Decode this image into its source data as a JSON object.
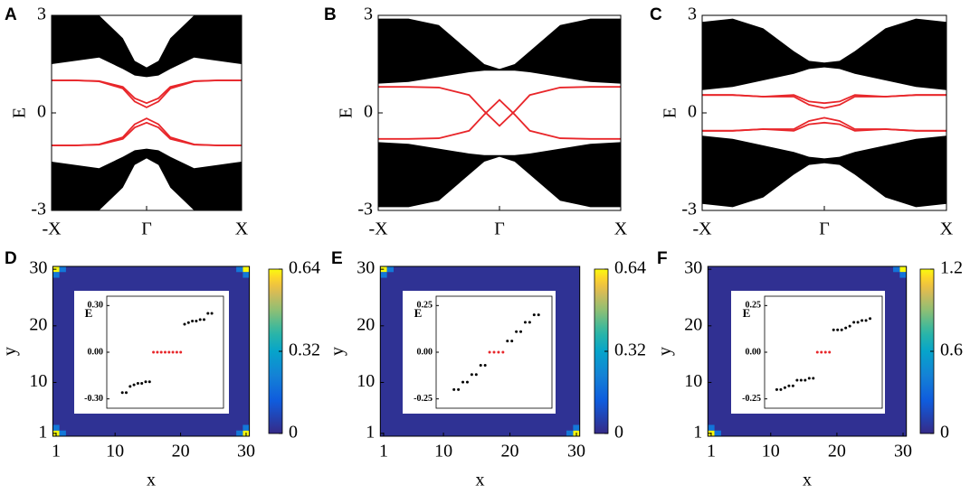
{
  "chart_data": [
    {
      "type": "band",
      "panel_label": "A",
      "ylabel": "E",
      "x": [
        -1,
        -0.75,
        -0.5,
        -0.25,
        -0.125,
        0,
        0.125,
        0.25,
        0.5,
        0.75,
        1
      ],
      "xlim": [
        -1,
        1
      ],
      "ylim": [
        -3,
        3
      ],
      "xticks": [
        {
          "value": -1,
          "label": "-X"
        },
        {
          "value": 0,
          "label": "Γ"
        },
        {
          "value": 1,
          "label": "X"
        }
      ],
      "yticks": [
        -3,
        0,
        3
      ],
      "bands": [
        {
          "color": "#000000",
          "lower": [
            1.5,
            1.6,
            1.7,
            1.35,
            1.15,
            1.1,
            1.15,
            1.35,
            1.7,
            1.6,
            1.5
          ],
          "upper": [
            3,
            3,
            3,
            2.3,
            1.6,
            1.4,
            1.6,
            2.3,
            3,
            3,
            3
          ]
        },
        {
          "color": "#000000",
          "lower": [
            -3,
            -3,
            -3,
            -2.3,
            -1.6,
            -1.4,
            -1.6,
            -2.3,
            -3,
            -3,
            -3
          ],
          "upper": [
            -1.5,
            -1.6,
            -1.7,
            -1.35,
            -1.15,
            -1.1,
            -1.15,
            -1.35,
            -1.7,
            -1.6,
            -1.5
          ]
        }
      ],
      "series": [
        {
          "color": "#e8262a",
          "values": [
            1,
            1,
            0.98,
            0.8,
            0.45,
            0.3,
            0.45,
            0.8,
            0.98,
            1,
            1
          ]
        },
        {
          "color": "#e8262a",
          "values": [
            1,
            1,
            0.97,
            0.75,
            0.35,
            0.17,
            0.35,
            0.75,
            0.97,
            1,
            1
          ]
        },
        {
          "color": "#e8262a",
          "values": [
            -1,
            -1,
            -0.98,
            -0.8,
            -0.45,
            -0.3,
            -0.45,
            -0.8,
            -0.98,
            -1,
            -1
          ]
        },
        {
          "color": "#e8262a",
          "values": [
            -1,
            -1,
            -0.97,
            -0.75,
            -0.35,
            -0.17,
            -0.35,
            -0.75,
            -0.97,
            -1,
            -1
          ]
        }
      ]
    },
    {
      "type": "band",
      "panel_label": "B",
      "ylabel": "E",
      "x": [
        -1,
        -0.75,
        -0.5,
        -0.25,
        -0.125,
        0,
        0.125,
        0.25,
        0.5,
        0.75,
        1
      ],
      "xlim": [
        -1,
        1
      ],
      "ylim": [
        -3,
        3
      ],
      "xticks": [
        {
          "value": -1,
          "label": "-X"
        },
        {
          "value": 0,
          "label": "Γ"
        },
        {
          "value": 1,
          "label": "X"
        }
      ],
      "yticks": [
        -3,
        0,
        3
      ],
      "bands": [
        {
          "color": "#000000",
          "lower": [
            0.9,
            0.95,
            1.1,
            1.25,
            1.3,
            1.3,
            1.3,
            1.25,
            1.1,
            0.95,
            0.9
          ],
          "upper": [
            2.9,
            2.9,
            2.7,
            1.9,
            1.5,
            1.35,
            1.5,
            1.9,
            2.7,
            2.9,
            2.9
          ]
        },
        {
          "color": "#000000",
          "lower": [
            -2.9,
            -2.9,
            -2.7,
            -1.9,
            -1.5,
            -1.35,
            -1.5,
            -1.9,
            -2.7,
            -2.9,
            -2.9
          ],
          "upper": [
            -0.9,
            -0.95,
            -1.1,
            -1.25,
            -1.3,
            -1.3,
            -1.3,
            -1.25,
            -1.1,
            -0.95,
            -0.9
          ]
        }
      ],
      "series": [
        {
          "color": "#e8262a",
          "values": [
            0.8,
            0.8,
            0.78,
            0.55,
            0.05,
            -0.4,
            0.05,
            0.55,
            0.78,
            0.8,
            0.8
          ]
        },
        {
          "color": "#e8262a",
          "values": [
            -0.8,
            -0.8,
            -0.78,
            -0.55,
            -0.05,
            0.4,
            -0.05,
            -0.55,
            -0.78,
            -0.8,
            -0.8
          ]
        }
      ]
    },
    {
      "type": "band",
      "panel_label": "C",
      "ylabel": "E",
      "x": [
        -1,
        -0.75,
        -0.5,
        -0.25,
        -0.125,
        0,
        0.125,
        0.25,
        0.5,
        0.75,
        1
      ],
      "xlim": [
        -1,
        1
      ],
      "ylim": [
        -3,
        3
      ],
      "xticks": [
        {
          "value": -1,
          "label": "-X"
        },
        {
          "value": 0,
          "label": "Γ"
        },
        {
          "value": 1,
          "label": "X"
        }
      ],
      "yticks": [
        -3,
        0,
        3
      ],
      "bands": [
        {
          "color": "#000000",
          "lower": [
            0.7,
            0.8,
            1.0,
            1.2,
            1.35,
            1.4,
            1.35,
            1.2,
            1.0,
            0.8,
            0.7
          ],
          "upper": [
            2.8,
            2.9,
            2.6,
            1.9,
            1.6,
            1.55,
            1.6,
            1.9,
            2.6,
            2.9,
            2.8
          ]
        },
        {
          "color": "#000000",
          "lower": [
            -2.8,
            -2.9,
            -2.6,
            -1.9,
            -1.6,
            -1.55,
            -1.6,
            -1.9,
            -2.6,
            -2.9,
            -2.8
          ],
          "upper": [
            -0.7,
            -0.8,
            -1.0,
            -1.2,
            -1.35,
            -1.4,
            -1.35,
            -1.2,
            -1.0,
            -0.8,
            -0.7
          ]
        }
      ],
      "series": [
        {
          "color": "#e8262a",
          "values": [
            0.55,
            0.55,
            0.5,
            0.55,
            0.35,
            0.3,
            0.35,
            0.55,
            0.5,
            0.55,
            0.55
          ]
        },
        {
          "color": "#e8262a",
          "values": [
            0.55,
            0.55,
            0.5,
            0.5,
            0.25,
            0.15,
            0.25,
            0.5,
            0.5,
            0.55,
            0.55
          ]
        },
        {
          "color": "#e8262a",
          "values": [
            -0.55,
            -0.55,
            -0.5,
            -0.55,
            -0.35,
            -0.3,
            -0.35,
            -0.55,
            -0.5,
            -0.55,
            -0.55
          ]
        },
        {
          "color": "#e8262a",
          "values": [
            -0.55,
            -0.55,
            -0.5,
            -0.5,
            -0.25,
            -0.15,
            -0.25,
            -0.5,
            -0.5,
            -0.55,
            -0.55
          ]
        }
      ]
    },
    {
      "type": "heatmap",
      "panel_label": "D",
      "xlabel": "x",
      "ylabel": "y",
      "xlim": [
        0.5,
        30.5
      ],
      "ylim": [
        0.5,
        30.5
      ],
      "xticks": [
        1,
        10,
        20,
        30
      ],
      "yticks": [
        1,
        10,
        20,
        30
      ],
      "colormap": "parula",
      "clim": [
        0,
        0.64
      ],
      "cticks": [
        0,
        0.32,
        0.64
      ],
      "background": 0.02,
      "hotspots": [
        {
          "x": 1,
          "y": 1,
          "value": 0.64
        },
        {
          "x": 2,
          "y": 1,
          "value": 0.2
        },
        {
          "x": 1,
          "y": 2,
          "value": 0.2
        },
        {
          "x": 30,
          "y": 1,
          "value": 0.64
        },
        {
          "x": 29,
          "y": 1,
          "value": 0.2
        },
        {
          "x": 30,
          "y": 2,
          "value": 0.2
        },
        {
          "x": 1,
          "y": 30,
          "value": 0.64
        },
        {
          "x": 2,
          "y": 30,
          "value": 0.2
        },
        {
          "x": 1,
          "y": 29,
          "value": 0.2
        },
        {
          "x": 30,
          "y": 30,
          "value": 0.64
        },
        {
          "x": 29,
          "y": 30,
          "value": 0.2
        },
        {
          "x": 30,
          "y": 29,
          "value": 0.2
        }
      ],
      "inset": {
        "ylabel": "E",
        "xlim": [
          -3,
          27
        ],
        "ylim": [
          -0.36,
          0.36
        ],
        "yticks": [
          {
            "value": 0.3,
            "label": "0.30"
          },
          {
            "value": 0,
            "label": "0.00"
          },
          {
            "value": -0.3,
            "label": "-0.30"
          }
        ],
        "series": [
          {
            "color": "#000000",
            "x": [
              1,
              2,
              3,
              4,
              5,
              6,
              7,
              8
            ],
            "values": [
              -0.26,
              -0.26,
              -0.22,
              -0.21,
              -0.2,
              -0.2,
              -0.19,
              -0.19
            ]
          },
          {
            "color": "#e8262a",
            "x": [
              9,
              10,
              11,
              12,
              13,
              14,
              15,
              16
            ],
            "values": [
              0,
              0,
              0,
              0,
              0,
              0,
              0,
              0
            ]
          },
          {
            "color": "#000000",
            "x": [
              17,
              18,
              19,
              20,
              21,
              22,
              23,
              24
            ],
            "values": [
              0.18,
              0.19,
              0.2,
              0.2,
              0.21,
              0.21,
              0.25,
              0.25
            ]
          }
        ]
      }
    },
    {
      "type": "heatmap",
      "panel_label": "E",
      "xlabel": "x",
      "ylabel": "y",
      "xlim": [
        0.5,
        30.5
      ],
      "ylim": [
        0.5,
        30.5
      ],
      "xticks": [
        1,
        10,
        20,
        30
      ],
      "yticks": [
        1,
        10,
        20,
        30
      ],
      "colormap": "parula",
      "clim": [
        0,
        0.64
      ],
      "cticks": [
        0,
        0.32,
        0.64
      ],
      "background": 0.02,
      "hotspots": [
        {
          "x": 1,
          "y": 30,
          "value": 0.64
        },
        {
          "x": 2,
          "y": 30,
          "value": 0.2
        },
        {
          "x": 1,
          "y": 29,
          "value": 0.2
        },
        {
          "x": 30,
          "y": 1,
          "value": 0.64
        },
        {
          "x": 29,
          "y": 1,
          "value": 0.2
        },
        {
          "x": 30,
          "y": 2,
          "value": 0.2
        }
      ],
      "inset": {
        "ylabel": "E",
        "xlim": [
          -3,
          23
        ],
        "ylim": [
          -0.3,
          0.3
        ],
        "yticks": [
          0.25,
          {
            "value": 0,
            "label": "0.00"
          },
          -0.25
        ],
        "series": [
          {
            "color": "#000000",
            "x": [
              1,
              2,
              3,
              4,
              5,
              6,
              7,
              8
            ],
            "values": [
              -0.2,
              -0.2,
              -0.16,
              -0.16,
              -0.12,
              -0.12,
              -0.07,
              -0.07
            ]
          },
          {
            "color": "#e8262a",
            "x": [
              9,
              10,
              11,
              12
            ],
            "values": [
              0,
              0,
              0,
              0
            ]
          },
          {
            "color": "#000000",
            "x": [
              13,
              14,
              15,
              16,
              17,
              18,
              19,
              20
            ],
            "values": [
              0.06,
              0.06,
              0.11,
              0.11,
              0.16,
              0.16,
              0.2,
              0.2
            ]
          }
        ]
      }
    },
    {
      "type": "heatmap",
      "panel_label": "F",
      "xlabel": "x",
      "ylabel": "y",
      "xlim": [
        0.5,
        30.5
      ],
      "ylim": [
        0.5,
        30.5
      ],
      "xticks": [
        1,
        10,
        20,
        30
      ],
      "yticks": [
        1,
        10,
        20,
        30
      ],
      "colormap": "parula",
      "clim": [
        0,
        1.2
      ],
      "cticks": [
        0,
        0.6,
        1.2
      ],
      "background": 0.03,
      "hotspots": [
        {
          "x": 1,
          "y": 1,
          "value": 1.2
        },
        {
          "x": 2,
          "y": 1,
          "value": 0.35
        },
        {
          "x": 1,
          "y": 2,
          "value": 0.35
        },
        {
          "x": 30,
          "y": 30,
          "value": 1.2
        },
        {
          "x": 29,
          "y": 30,
          "value": 0.35
        },
        {
          "x": 30,
          "y": 29,
          "value": 0.35
        }
      ],
      "inset": {
        "ylabel": "E",
        "xlim": [
          -2,
          27
        ],
        "ylim": [
          -0.3,
          0.3
        ],
        "yticks": [
          0.25,
          {
            "value": 0,
            "label": "0.00"
          },
          -0.25
        ],
        "series": [
          {
            "color": "#000000",
            "x": [
              1,
              2,
              3,
              4,
              5,
              6,
              7,
              8,
              9,
              10
            ],
            "values": [
              -0.2,
              -0.2,
              -0.19,
              -0.18,
              -0.18,
              -0.15,
              -0.15,
              -0.15,
              -0.14,
              -0.14
            ]
          },
          {
            "color": "#e8262a",
            "x": [
              11,
              12,
              13,
              14
            ],
            "values": [
              0,
              0,
              0,
              0
            ]
          },
          {
            "color": "#000000",
            "x": [
              15,
              16,
              17,
              18,
              19,
              20,
              21,
              22,
              23,
              24
            ],
            "values": [
              0.12,
              0.12,
              0.12,
              0.13,
              0.14,
              0.16,
              0.16,
              0.17,
              0.17,
              0.18
            ]
          }
        ]
      }
    }
  ]
}
